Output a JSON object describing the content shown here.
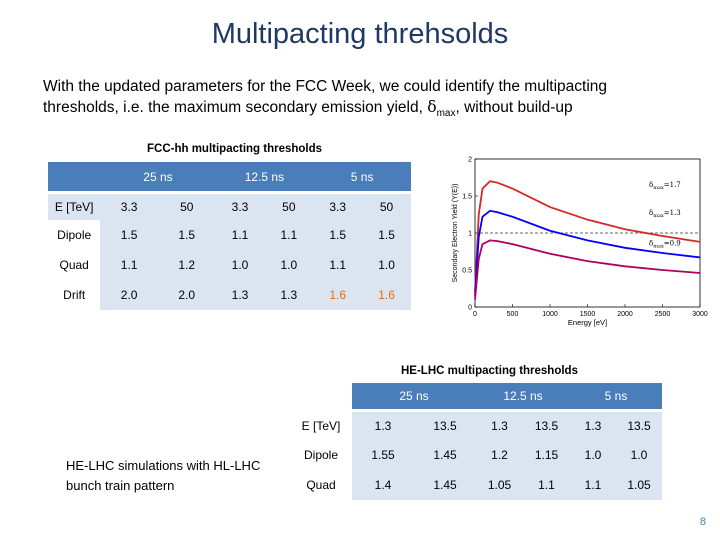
{
  "title": "Multipacting threhsolds",
  "intro": {
    "before": "With the updated parameters for the FCC Week, we could identify the multipacting thresholds, i.e. the maximum secondary emission yield, ",
    "delta": "δ",
    "sub": "max",
    "after": ", without build-up"
  },
  "fcc_table": {
    "caption": "FCC-hh multipacting thresholds",
    "groups": [
      "25 ns",
      "12.5 ns",
      "5 ns"
    ],
    "header_label": "E [TeV]",
    "energies": [
      "3.3",
      "50",
      "3.3",
      "50",
      "3.3",
      "50"
    ],
    "rows": [
      {
        "label": "Dipole",
        "values": [
          "1.5",
          "1.5",
          "1.1",
          "1.1",
          "1.5",
          "1.5"
        ]
      },
      {
        "label": "Quad",
        "values": [
          "1.1",
          "1.2",
          "1.0",
          "1.0",
          "1.1",
          "1.0"
        ]
      },
      {
        "label": "Drift",
        "values": [
          "2.0",
          "2.0",
          "1.3",
          "1.3",
          "1.6",
          "1.6"
        ]
      }
    ]
  },
  "helhc_table": {
    "caption": "HE-LHC multipacting thresholds",
    "groups": [
      "25 ns",
      "12.5 ns",
      "5 ns"
    ],
    "header_label": "E [TeV]",
    "energies": [
      "1.3",
      "13.5",
      "1.3",
      "13.5",
      "1.3",
      "13.5"
    ],
    "rows": [
      {
        "label": "Dipole",
        "values": [
          "1.55",
          "1.45",
          "1.2",
          "1.15",
          "1.0",
          "1.0"
        ]
      },
      {
        "label": "Quad",
        "values": [
          "1.4",
          "1.45",
          "1.05",
          "1.1",
          "1.1",
          "1.05"
        ]
      }
    ]
  },
  "bottom_note": "HE-LHC simulations with HL-LHC bunch train pattern",
  "page_number": "8",
  "chart_data": {
    "type": "line",
    "title": "",
    "xlabel": "Energy [eV]",
    "ylabel": "Secondary Electron Yield (Y(E))",
    "xlim": [
      0,
      3000
    ],
    "ylim": [
      0,
      2
    ],
    "xticks": [
      "0",
      "500",
      "1000",
      "1500",
      "2000",
      "2500",
      "3000"
    ],
    "yticks": [
      "0",
      "0.5",
      "1",
      "1.5",
      "2"
    ],
    "reference_line": 1.0,
    "series": [
      {
        "color": "#d62728",
        "peak": 1.7,
        "x": [
          0,
          50,
          100,
          200,
          300,
          500,
          1000,
          1500,
          2000,
          2500,
          3000
        ],
        "y": [
          0.2,
          1.25,
          1.6,
          1.7,
          1.68,
          1.6,
          1.35,
          1.18,
          1.05,
          0.96,
          0.88
        ]
      },
      {
        "color": "#0000ff",
        "peak": 1.3,
        "x": [
          0,
          50,
          100,
          200,
          300,
          500,
          1000,
          1500,
          2000,
          2500,
          3000
        ],
        "y": [
          0.15,
          0.95,
          1.22,
          1.3,
          1.28,
          1.22,
          1.03,
          0.9,
          0.8,
          0.73,
          0.67
        ]
      },
      {
        "color": "#b0005f",
        "peak": 0.9,
        "x": [
          0,
          50,
          100,
          200,
          300,
          500,
          1000,
          1500,
          2000,
          2500,
          3000
        ],
        "y": [
          0.1,
          0.65,
          0.85,
          0.9,
          0.89,
          0.85,
          0.72,
          0.62,
          0.55,
          0.5,
          0.46
        ]
      }
    ],
    "annotations": [
      {
        "prefix": "δ",
        "sub": "max",
        "text": "=1.7"
      },
      {
        "prefix": "δ",
        "sub": "max",
        "text": "=1.3"
      },
      {
        "prefix": "δ",
        "sub": "max",
        "text": "=0.9"
      }
    ]
  }
}
